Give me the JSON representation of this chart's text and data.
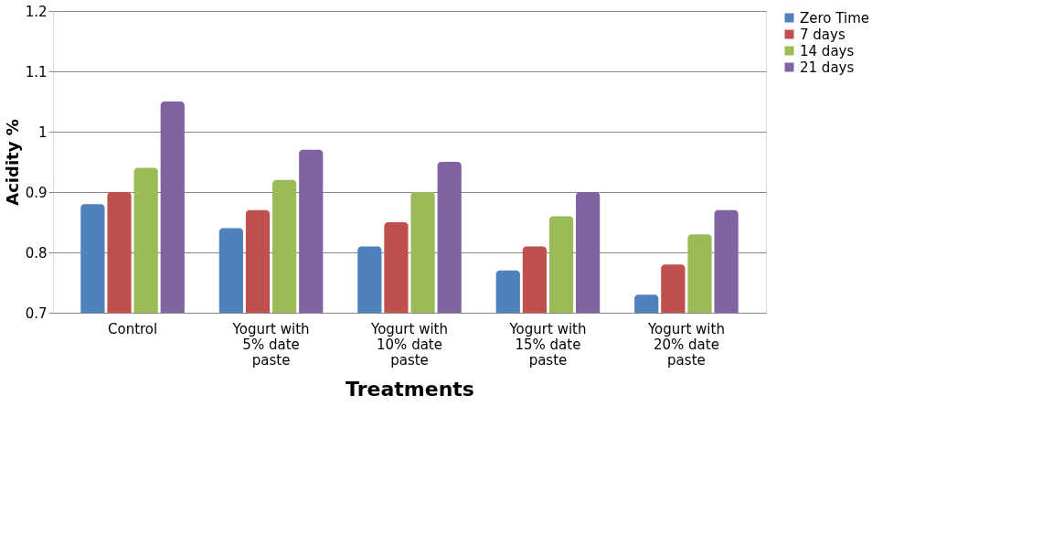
{
  "chart_data": {
    "type": "bar",
    "xlabel": "Treatments",
    "ylabel": "Acidity %",
    "categories": [
      "Control",
      "Yogurt with 5% date paste",
      "Yogurt with 10% date paste",
      "Yogurt with 15% date paste",
      "Yogurt with 20% date paste"
    ],
    "series": [
      {
        "name": "Zero Time",
        "color": "#4f81bd",
        "values": [
          0.88,
          0.84,
          0.81,
          0.77,
          0.73
        ]
      },
      {
        "name": "7 days",
        "color": "#c0504d",
        "values": [
          0.9,
          0.87,
          0.85,
          0.81,
          0.78
        ]
      },
      {
        "name": "14 days",
        "color": "#9bbb59",
        "values": [
          0.94,
          0.92,
          0.9,
          0.86,
          0.83
        ]
      },
      {
        "name": "21 days",
        "color": "#8064a2",
        "values": [
          1.05,
          0.97,
          0.95,
          0.9,
          0.87
        ]
      }
    ],
    "ylim": [
      0.7,
      1.2
    ],
    "yticks": [
      0.7,
      0.8,
      0.9,
      1,
      1.1,
      1.2
    ],
    "grid": "y",
    "legend": "right"
  }
}
